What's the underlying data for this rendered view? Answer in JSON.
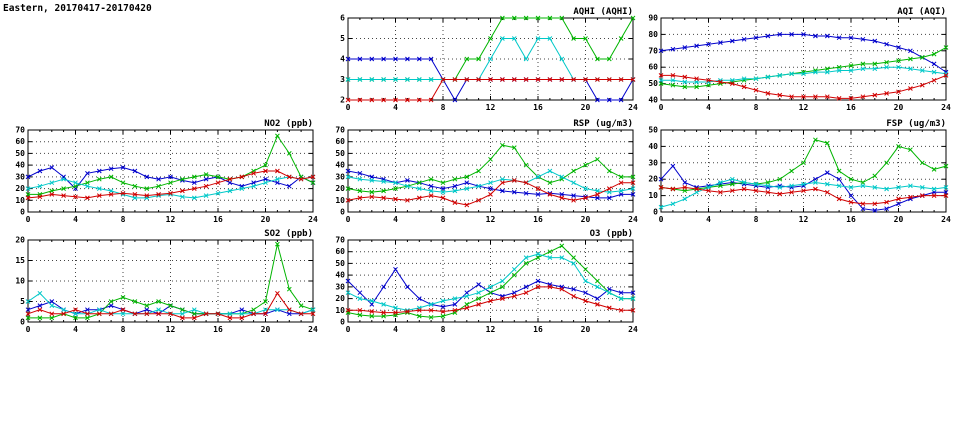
{
  "page_title": "Eastern, 20170417-20170420",
  "x_hours": [
    0,
    1,
    2,
    3,
    4,
    5,
    6,
    7,
    8,
    9,
    10,
    11,
    12,
    13,
    14,
    15,
    16,
    17,
    18,
    19,
    20,
    21,
    22,
    23,
    24
  ],
  "colors": {
    "blue": "#0000cc",
    "green": "#00b400",
    "cyan": "#00c8c8",
    "red": "#d00000"
  },
  "chart_data": [
    {
      "key": "aqhi",
      "type": "line",
      "title": "AQHI (AQHI)",
      "xlim": [
        0,
        24
      ],
      "xticks": [
        0,
        4,
        8,
        12,
        16,
        20,
        24
      ],
      "ylim": [
        2,
        6
      ],
      "yticks": [
        2,
        3,
        4,
        5,
        6
      ],
      "grid": true,
      "legend": "none",
      "marker": "x",
      "series": [
        {
          "name": "blue",
          "color": "#0000cc",
          "values": [
            4,
            4,
            4,
            4,
            4,
            4,
            4,
            4,
            3,
            2,
            3,
            3,
            3,
            3,
            3,
            3,
            3,
            3,
            3,
            3,
            3,
            2,
            2,
            2,
            3
          ]
        },
        {
          "name": "green",
          "color": "#00b400",
          "values": [
            3,
            3,
            3,
            3,
            3,
            3,
            3,
            3,
            3,
            3,
            4,
            4,
            5,
            6,
            6,
            6,
            6,
            6,
            6,
            5,
            5,
            4,
            4,
            5,
            6
          ]
        },
        {
          "name": "cyan",
          "color": "#00c8c8",
          "values": [
            3,
            3,
            3,
            3,
            3,
            3,
            3,
            3,
            3,
            3,
            3,
            3,
            4,
            5,
            5,
            4,
            5,
            5,
            4,
            3,
            3,
            3,
            3,
            3,
            3
          ]
        },
        {
          "name": "red",
          "color": "#d00000",
          "values": [
            2,
            2,
            2,
            2,
            2,
            2,
            2,
            2,
            3,
            3,
            3,
            3,
            3,
            3,
            3,
            3,
            3,
            3,
            3,
            3,
            3,
            3,
            3,
            3,
            3
          ]
        }
      ]
    },
    {
      "key": "aqi",
      "type": "line",
      "title": "AQI (AQI)",
      "xlim": [
        0,
        24
      ],
      "xticks": [
        0,
        4,
        8,
        12,
        16,
        20,
        24
      ],
      "ylim": [
        40,
        90
      ],
      "yticks": [
        40,
        50,
        60,
        70,
        80,
        90
      ],
      "grid": true,
      "legend": "none",
      "marker": "x",
      "series": [
        {
          "name": "blue",
          "color": "#0000cc",
          "values": [
            70,
            71,
            72,
            73,
            74,
            75,
            76,
            77,
            78,
            79,
            80,
            80,
            80,
            79,
            79,
            78,
            78,
            77,
            76,
            74,
            72,
            70,
            66,
            62,
            57
          ]
        },
        {
          "name": "green",
          "color": "#00b400",
          "values": [
            50,
            49,
            48,
            48,
            49,
            50,
            51,
            52,
            53,
            54,
            55,
            56,
            57,
            58,
            59,
            60,
            61,
            62,
            62,
            63,
            64,
            65,
            66,
            68,
            72
          ]
        },
        {
          "name": "cyan",
          "color": "#00c8c8",
          "values": [
            52,
            52,
            51,
            51,
            51,
            52,
            52,
            53,
            53,
            54,
            55,
            56,
            56,
            57,
            57,
            58,
            58,
            59,
            59,
            60,
            60,
            59,
            58,
            57,
            56
          ]
        },
        {
          "name": "red",
          "color": "#d00000",
          "values": [
            55,
            55,
            54,
            53,
            52,
            51,
            50,
            48,
            46,
            44,
            43,
            42,
            42,
            42,
            42,
            41,
            41,
            42,
            43,
            44,
            45,
            47,
            49,
            52,
            55
          ]
        }
      ]
    },
    {
      "key": "no2",
      "type": "line",
      "title": "NO2 (ppb)",
      "xlim": [
        0,
        24
      ],
      "xticks": [
        0,
        4,
        8,
        12,
        16,
        20,
        24
      ],
      "ylim": [
        0,
        70
      ],
      "yticks": [
        0,
        10,
        20,
        30,
        40,
        50,
        60,
        70
      ],
      "grid": true,
      "legend": "none",
      "marker": "x",
      "series": [
        {
          "name": "blue",
          "color": "#0000cc",
          "values": [
            30,
            35,
            38,
            30,
            20,
            33,
            35,
            37,
            38,
            35,
            30,
            28,
            30,
            27,
            25,
            28,
            30,
            25,
            22,
            25,
            28,
            25,
            22,
            30,
            25
          ]
        },
        {
          "name": "green",
          "color": "#00b400",
          "values": [
            15,
            15,
            18,
            20,
            22,
            25,
            28,
            30,
            25,
            22,
            20,
            22,
            25,
            28,
            30,
            32,
            30,
            28,
            30,
            35,
            40,
            65,
            50,
            30,
            25
          ]
        },
        {
          "name": "cyan",
          "color": "#00c8c8",
          "values": [
            20,
            22,
            25,
            28,
            25,
            22,
            20,
            18,
            15,
            12,
            12,
            14,
            15,
            13,
            12,
            14,
            16,
            18,
            20,
            22,
            25,
            28,
            30,
            28,
            30
          ]
        },
        {
          "name": "red",
          "color": "#d00000",
          "values": [
            12,
            13,
            15,
            14,
            13,
            12,
            14,
            15,
            16,
            15,
            14,
            15,
            16,
            18,
            20,
            22,
            25,
            28,
            30,
            33,
            35,
            35,
            30,
            28,
            30
          ]
        }
      ]
    },
    {
      "key": "rsp",
      "type": "line",
      "title": "RSP (ug/m3)",
      "xlim": [
        0,
        24
      ],
      "xticks": [
        0,
        4,
        8,
        12,
        16,
        20,
        24
      ],
      "ylim": [
        0,
        70
      ],
      "yticks": [
        0,
        10,
        20,
        30,
        40,
        50,
        60,
        70
      ],
      "grid": true,
      "legend": "none",
      "marker": "x",
      "series": [
        {
          "name": "blue",
          "color": "#0000cc",
          "values": [
            35,
            33,
            30,
            28,
            25,
            27,
            25,
            22,
            20,
            22,
            25,
            22,
            20,
            18,
            17,
            16,
            15,
            16,
            15,
            14,
            13,
            12,
            12,
            15,
            15
          ]
        },
        {
          "name": "green",
          "color": "#00b400",
          "values": [
            20,
            18,
            17,
            18,
            20,
            22,
            25,
            28,
            25,
            28,
            30,
            35,
            45,
            57,
            55,
            40,
            30,
            25,
            28,
            35,
            40,
            45,
            35,
            30,
            30
          ]
        },
        {
          "name": "cyan",
          "color": "#00c8c8",
          "values": [
            30,
            28,
            27,
            26,
            25,
            22,
            20,
            18,
            17,
            18,
            20,
            22,
            25,
            28,
            27,
            25,
            30,
            35,
            30,
            25,
            20,
            18,
            17,
            18,
            20
          ]
        },
        {
          "name": "red",
          "color": "#d00000",
          "values": [
            10,
            12,
            13,
            12,
            11,
            10,
            12,
            14,
            12,
            8,
            6,
            10,
            15,
            25,
            27,
            25,
            20,
            15,
            12,
            10,
            12,
            15,
            20,
            25,
            25
          ]
        }
      ]
    },
    {
      "key": "fsp",
      "type": "line",
      "title": "FSP (ug/m3)",
      "xlim": [
        0,
        24
      ],
      "xticks": [
        0,
        4,
        8,
        12,
        16,
        20,
        24
      ],
      "ylim": [
        0,
        50
      ],
      "yticks": [
        0,
        10,
        20,
        30,
        40,
        50
      ],
      "grid": true,
      "legend": "none",
      "marker": "x",
      "series": [
        {
          "name": "blue",
          "color": "#0000cc",
          "values": [
            20,
            28,
            18,
            15,
            16,
            17,
            18,
            17,
            16,
            15,
            16,
            15,
            16,
            20,
            24,
            20,
            10,
            2,
            1,
            2,
            5,
            8,
            10,
            12,
            12
          ]
        },
        {
          "name": "green",
          "color": "#00b400",
          "values": [
            15,
            14,
            13,
            14,
            15,
            16,
            17,
            18,
            17,
            18,
            20,
            25,
            30,
            44,
            42,
            25,
            20,
            18,
            22,
            30,
            40,
            38,
            30,
            26,
            28
          ]
        },
        {
          "name": "cyan",
          "color": "#00c8c8",
          "values": [
            3,
            5,
            8,
            12,
            15,
            18,
            20,
            18,
            17,
            16,
            15,
            16,
            17,
            18,
            17,
            16,
            15,
            16,
            15,
            14,
            15,
            16,
            15,
            14,
            15
          ]
        },
        {
          "name": "red",
          "color": "#d00000",
          "values": [
            15,
            14,
            15,
            14,
            13,
            12,
            13,
            14,
            13,
            12,
            11,
            12,
            13,
            14,
            12,
            8,
            6,
            5,
            5,
            6,
            8,
            9,
            10,
            10,
            10
          ]
        }
      ]
    },
    {
      "key": "so2",
      "type": "line",
      "title": "SO2 (ppb)",
      "xlim": [
        0,
        24
      ],
      "xticks": [
        0,
        4,
        8,
        12,
        16,
        20,
        24
      ],
      "ylim": [
        0,
        20
      ],
      "yticks": [
        0,
        5,
        10,
        15,
        20
      ],
      "grid": true,
      "legend": "none",
      "marker": "x",
      "series": [
        {
          "name": "blue",
          "color": "#0000cc",
          "values": [
            3,
            4,
            5,
            3,
            2,
            3,
            3,
            4,
            3,
            2,
            3,
            2,
            4,
            3,
            2,
            2,
            2,
            2,
            3,
            2,
            2,
            3,
            2,
            2,
            3
          ]
        },
        {
          "name": "green",
          "color": "#00b400",
          "values": [
            1,
            1,
            1,
            2,
            1,
            1,
            2,
            5,
            6,
            5,
            4,
            5,
            4,
            3,
            2,
            2,
            2,
            2,
            2,
            3,
            5,
            19,
            8,
            4,
            3
          ]
        },
        {
          "name": "cyan",
          "color": "#00c8c8",
          "values": [
            5,
            7,
            4,
            3,
            2,
            2,
            3,
            2,
            2,
            2,
            2,
            3,
            2,
            2,
            3,
            2,
            2,
            2,
            2,
            2,
            3,
            3,
            3,
            2,
            3
          ]
        },
        {
          "name": "red",
          "color": "#d00000",
          "values": [
            2,
            3,
            2,
            2,
            3,
            2,
            2,
            2,
            3,
            2,
            2,
            2,
            2,
            1,
            1,
            2,
            2,
            1,
            1,
            2,
            2,
            7,
            3,
            2,
            2
          ]
        }
      ]
    },
    {
      "key": "o3",
      "type": "line",
      "title": "O3 (ppb)",
      "xlim": [
        0,
        24
      ],
      "xticks": [
        0,
        4,
        8,
        12,
        16,
        20,
        24
      ],
      "ylim": [
        0,
        70
      ],
      "yticks": [
        0,
        10,
        20,
        30,
        40,
        50,
        60,
        70
      ],
      "grid": true,
      "legend": "none",
      "marker": "x",
      "series": [
        {
          "name": "blue",
          "color": "#0000cc",
          "values": [
            35,
            25,
            15,
            30,
            45,
            30,
            20,
            15,
            13,
            15,
            25,
            32,
            25,
            22,
            25,
            30,
            35,
            32,
            30,
            28,
            25,
            20,
            28,
            25,
            25
          ]
        },
        {
          "name": "green",
          "color": "#00b400",
          "values": [
            8,
            6,
            5,
            5,
            6,
            8,
            5,
            4,
            5,
            8,
            15,
            20,
            25,
            30,
            40,
            50,
            55,
            60,
            65,
            55,
            45,
            35,
            25,
            20,
            20
          ]
        },
        {
          "name": "cyan",
          "color": "#00c8c8",
          "values": [
            25,
            20,
            18,
            15,
            12,
            10,
            12,
            15,
            18,
            20,
            22,
            25,
            30,
            35,
            45,
            55,
            58,
            55,
            55,
            50,
            35,
            30,
            25,
            20,
            20
          ]
        },
        {
          "name": "red",
          "color": "#d00000",
          "values": [
            10,
            10,
            9,
            8,
            8,
            9,
            10,
            10,
            9,
            10,
            12,
            15,
            18,
            20,
            22,
            25,
            30,
            30,
            28,
            22,
            18,
            15,
            12,
            10,
            10
          ]
        }
      ]
    }
  ]
}
